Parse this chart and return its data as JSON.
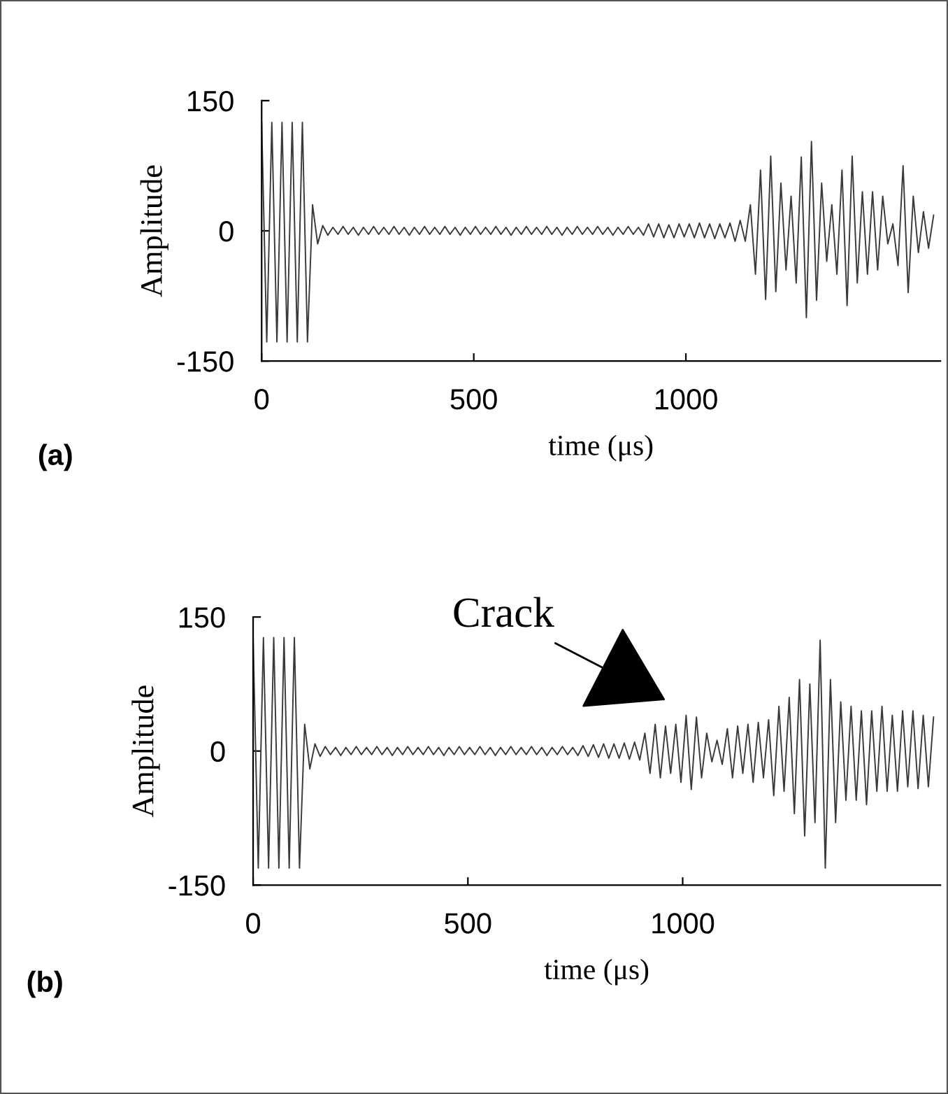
{
  "chart_data": [
    {
      "type": "line",
      "xlabel": "time (μs)",
      "ylabel": "Amplitude",
      "xlim": [
        0,
        1600
      ],
      "ylim": [
        -150,
        150
      ],
      "xticks": [
        0,
        500,
        1000
      ],
      "yticks": [
        -150,
        0,
        150
      ],
      "grid": false,
      "marker": "none",
      "line_style": "solid",
      "annotations": [
        "(a)"
      ],
      "series": [
        {
          "color": "#3a3a3a",
          "x": [
            0,
            12,
            24,
            36,
            48,
            60,
            72,
            84,
            96,
            108,
            120,
            132,
            144,
            156,
            168,
            180,
            192,
            204,
            216,
            228,
            240,
            252,
            264,
            276,
            288,
            300,
            312,
            324,
            336,
            348,
            360,
            372,
            384,
            396,
            408,
            420,
            432,
            444,
            456,
            468,
            480,
            492,
            504,
            516,
            528,
            540,
            552,
            564,
            576,
            588,
            600,
            612,
            624,
            636,
            648,
            660,
            672,
            684,
            696,
            708,
            720,
            732,
            744,
            756,
            768,
            780,
            792,
            804,
            816,
            828,
            840,
            852,
            864,
            876,
            888,
            900,
            912,
            924,
            936,
            948,
            960,
            972,
            984,
            996,
            1008,
            1020,
            1032,
            1044,
            1056,
            1068,
            1080,
            1092,
            1104,
            1116,
            1128,
            1140,
            1152,
            1164,
            1176,
            1188,
            1200,
            1212,
            1224,
            1236,
            1248,
            1260,
            1272,
            1284,
            1296,
            1308,
            1320,
            1332,
            1344,
            1356,
            1368,
            1380,
            1392,
            1404,
            1416,
            1428,
            1440,
            1452,
            1464,
            1476,
            1488,
            1500,
            1512,
            1524,
            1536,
            1548,
            1560,
            1572,
            1584
          ],
          "values": [
            125,
            -128,
            125,
            -128,
            125,
            -128,
            125,
            -128,
            125,
            -128,
            30,
            -15,
            6,
            -5,
            4,
            -4,
            5,
            -4,
            4,
            -5,
            4,
            -4,
            5,
            -4,
            4,
            -4,
            5,
            -4,
            4,
            -5,
            4,
            -4,
            5,
            -4,
            4,
            -4,
            5,
            -4,
            4,
            -5,
            4,
            -4,
            5,
            -4,
            4,
            -4,
            5,
            -4,
            4,
            -5,
            4,
            -4,
            5,
            -4,
            4,
            -4,
            5,
            -4,
            4,
            -5,
            4,
            -4,
            5,
            -4,
            4,
            -4,
            5,
            -4,
            4,
            -5,
            4,
            -4,
            5,
            -4,
            4,
            -5,
            8,
            -7,
            8,
            -8,
            7,
            -8,
            8,
            -7,
            8,
            -8,
            9,
            -8,
            8,
            -9,
            8,
            -8,
            9,
            -12,
            12,
            -12,
            30,
            -50,
            70,
            -79,
            86,
            -70,
            55,
            -45,
            40,
            -60,
            85,
            -100,
            103,
            -80,
            55,
            -35,
            30,
            -50,
            70,
            -86,
            86,
            -60,
            45,
            -50,
            45,
            -45,
            40,
            -15,
            8,
            -40,
            75,
            -71,
            40,
            -25,
            22,
            -20,
            18
          ]
        }
      ]
    },
    {
      "type": "line",
      "xlabel": "time (μs)",
      "ylabel": "Amplitude",
      "xlim": [
        0,
        1600
      ],
      "ylim": [
        -150,
        150
      ],
      "xticks": [
        0,
        500,
        1000
      ],
      "yticks": [
        -150,
        0,
        150
      ],
      "grid": false,
      "marker": "none",
      "line_style": "solid",
      "annotations": [
        "Crack",
        "(b)"
      ],
      "series": [
        {
          "color": "#3a3a3a",
          "x": [
            0,
            12,
            24,
            36,
            48,
            60,
            72,
            84,
            96,
            108,
            120,
            132,
            144,
            156,
            168,
            180,
            192,
            204,
            216,
            228,
            240,
            252,
            264,
            276,
            288,
            300,
            312,
            324,
            336,
            348,
            360,
            372,
            384,
            396,
            408,
            420,
            432,
            444,
            456,
            468,
            480,
            492,
            504,
            516,
            528,
            540,
            552,
            564,
            576,
            588,
            600,
            612,
            624,
            636,
            648,
            660,
            672,
            684,
            696,
            708,
            720,
            732,
            744,
            756,
            768,
            780,
            792,
            804,
            816,
            828,
            840,
            852,
            864,
            876,
            888,
            900,
            912,
            924,
            936,
            948,
            960,
            972,
            984,
            996,
            1008,
            1020,
            1032,
            1044,
            1056,
            1068,
            1080,
            1092,
            1104,
            1116,
            1128,
            1140,
            1152,
            1164,
            1176,
            1188,
            1200,
            1212,
            1224,
            1236,
            1248,
            1260,
            1272,
            1284,
            1296,
            1308,
            1320,
            1332,
            1344,
            1356,
            1368,
            1380,
            1392,
            1404,
            1416,
            1428,
            1440,
            1452,
            1464,
            1476,
            1488,
            1500,
            1512,
            1524,
            1536,
            1548,
            1560,
            1572,
            1584
          ],
          "values": [
            127,
            -131,
            127,
            -131,
            127,
            -131,
            127,
            -131,
            127,
            -131,
            30,
            -20,
            8,
            -6,
            5,
            -4,
            4,
            -5,
            4,
            -4,
            5,
            -4,
            4,
            -4,
            5,
            -4,
            4,
            -5,
            4,
            -4,
            5,
            -4,
            4,
            -4,
            5,
            -4,
            4,
            -5,
            4,
            -4,
            5,
            -4,
            4,
            -4,
            5,
            -4,
            4,
            -5,
            4,
            -4,
            5,
            -4,
            4,
            -4,
            5,
            -4,
            4,
            -5,
            4,
            -4,
            5,
            -4,
            4,
            -5,
            6,
            -6,
            7,
            -7,
            8,
            -8,
            8,
            -8,
            9,
            -9,
            10,
            -10,
            20,
            -25,
            30,
            -30,
            28,
            -25,
            30,
            -35,
            40,
            -43,
            38,
            -30,
            20,
            -12,
            12,
            -15,
            25,
            -30,
            28,
            -25,
            30,
            -35,
            32,
            -30,
            35,
            -50,
            50,
            -45,
            60,
            -70,
            80,
            -95,
            75,
            -80,
            124,
            -131,
            80,
            -80,
            55,
            -55,
            50,
            -55,
            45,
            -60,
            45,
            -45,
            50,
            -45,
            40,
            -45,
            45,
            -40,
            45,
            -42,
            40,
            -40,
            38
          ]
        }
      ]
    }
  ]
}
